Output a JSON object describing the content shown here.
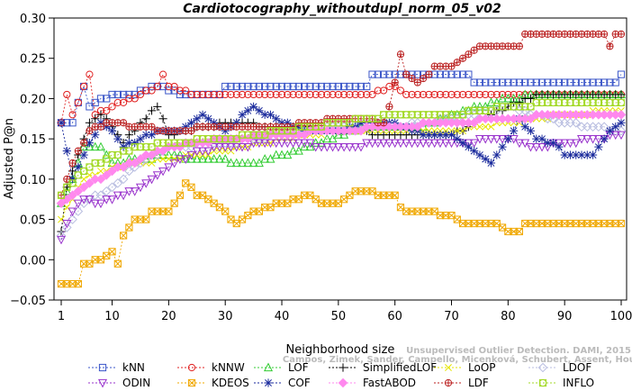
{
  "chart_data": {
    "type": "line",
    "title": "Cardiotocography_withoutdupl_norm_05_v02",
    "xlabel": "Neighborhood size",
    "ylabel": "Adjusted P@n",
    "xlim": [
      1,
      100
    ],
    "ylim": [
      -0.05,
      0.3
    ],
    "xticks": [
      1,
      10,
      20,
      30,
      40,
      50,
      60,
      70,
      80,
      90,
      100
    ],
    "yticks": [
      -0.05,
      0.0,
      0.05,
      0.1,
      0.15,
      0.2,
      0.25,
      0.3
    ],
    "ytick_labels": [
      "−0.05",
      "0.00",
      "0.05",
      "0.10",
      "0.15",
      "0.20",
      "0.25",
      "0.30"
    ],
    "grid": false,
    "legend_position": "bottom",
    "watermark": "Campos, Zimek, Sander, Campello, Micenková, Schubert, Assent, Houle",
    "watermark2": "Unsupervised Outlier Detection. DAMI, 2015.",
    "series": [
      {
        "name": "kNN",
        "color": "#3a55c8",
        "marker": "square",
        "points": [
          [
            1,
            0.17
          ],
          [
            3,
            0.17
          ],
          [
            5,
            0.215
          ],
          [
            6,
            0.19
          ],
          [
            10,
            0.205
          ],
          [
            13,
            0.205
          ],
          [
            18,
            0.215
          ],
          [
            22,
            0.205
          ],
          [
            29,
            0.205
          ],
          [
            30,
            0.215
          ],
          [
            55,
            0.215
          ],
          [
            56,
            0.23
          ],
          [
            73,
            0.23
          ],
          [
            74,
            0.22
          ],
          [
            99,
            0.22
          ],
          [
            100,
            0.23
          ]
        ]
      },
      {
        "name": "kNNW",
        "color": "#e02020",
        "marker": "circle",
        "points": [
          [
            1,
            0.17
          ],
          [
            2,
            0.205
          ],
          [
            3,
            0.18
          ],
          [
            6,
            0.23
          ],
          [
            7,
            0.18
          ],
          [
            10,
            0.19
          ],
          [
            15,
            0.205
          ],
          [
            18,
            0.215
          ],
          [
            19,
            0.23
          ],
          [
            20,
            0.215
          ],
          [
            25,
            0.205
          ],
          [
            55,
            0.205
          ],
          [
            60,
            0.215
          ],
          [
            62,
            0.205
          ],
          [
            75,
            0.205
          ],
          [
            100,
            0.205
          ]
        ]
      },
      {
        "name": "LOF",
        "color": "#33cc33",
        "marker": "triangle-up",
        "points": [
          [
            1,
            0.07
          ],
          [
            3,
            0.1
          ],
          [
            5,
            0.14
          ],
          [
            8,
            0.14
          ],
          [
            10,
            0.12
          ],
          [
            15,
            0.125
          ],
          [
            20,
            0.13
          ],
          [
            25,
            0.125
          ],
          [
            35,
            0.12
          ],
          [
            45,
            0.14
          ],
          [
            55,
            0.165
          ],
          [
            65,
            0.165
          ],
          [
            75,
            0.19
          ],
          [
            80,
            0.2
          ],
          [
            85,
            0.205
          ],
          [
            100,
            0.205
          ]
        ]
      },
      {
        "name": "SimplifiedLOF",
        "color": "#000000",
        "marker": "plus",
        "points": [
          [
            1,
            0.035
          ],
          [
            2,
            0.09
          ],
          [
            4,
            0.13
          ],
          [
            6,
            0.17
          ],
          [
            8,
            0.18
          ],
          [
            10,
            0.165
          ],
          [
            12,
            0.145
          ],
          [
            18,
            0.19
          ],
          [
            20,
            0.155
          ],
          [
            30,
            0.17
          ],
          [
            40,
            0.165
          ],
          [
            50,
            0.16
          ],
          [
            60,
            0.155
          ],
          [
            70,
            0.155
          ],
          [
            80,
            0.19
          ],
          [
            85,
            0.205
          ],
          [
            100,
            0.205
          ]
        ]
      },
      {
        "name": "LoOP",
        "color": "#e6e600",
        "marker": "x",
        "points": [
          [
            1,
            0.05
          ],
          [
            5,
            0.1
          ],
          [
            10,
            0.115
          ],
          [
            15,
            0.12
          ],
          [
            20,
            0.125
          ],
          [
            30,
            0.135
          ],
          [
            40,
            0.15
          ],
          [
            50,
            0.16
          ],
          [
            60,
            0.16
          ],
          [
            70,
            0.16
          ],
          [
            80,
            0.17
          ],
          [
            90,
            0.18
          ],
          [
            100,
            0.185
          ]
        ]
      },
      {
        "name": "LDOF",
        "color": "#b8bde0",
        "marker": "diamond",
        "points": [
          [
            1,
            0.03
          ],
          [
            5,
            0.07
          ],
          [
            10,
            0.09
          ],
          [
            15,
            0.12
          ],
          [
            20,
            0.14
          ],
          [
            30,
            0.145
          ],
          [
            40,
            0.155
          ],
          [
            50,
            0.165
          ],
          [
            60,
            0.165
          ],
          [
            70,
            0.175
          ],
          [
            80,
            0.19
          ],
          [
            90,
            0.17
          ],
          [
            100,
            0.16
          ]
        ]
      },
      {
        "name": "ODIN",
        "color": "#9933cc",
        "marker": "triangle-down",
        "points": [
          [
            1,
            0.025
          ],
          [
            3,
            0.06
          ],
          [
            5,
            0.075
          ],
          [
            8,
            0.07
          ],
          [
            10,
            0.075
          ],
          [
            15,
            0.09
          ],
          [
            20,
            0.115
          ],
          [
            25,
            0.135
          ],
          [
            30,
            0.14
          ],
          [
            40,
            0.145
          ],
          [
            50,
            0.14
          ],
          [
            60,
            0.145
          ],
          [
            70,
            0.145
          ],
          [
            80,
            0.15
          ],
          [
            85,
            0.14
          ],
          [
            90,
            0.145
          ],
          [
            95,
            0.15
          ],
          [
            100,
            0.155
          ]
        ]
      },
      {
        "name": "KDEOS",
        "color": "#f0a800",
        "marker": "square-x",
        "points": [
          [
            1,
            -0.03
          ],
          [
            4,
            -0.03
          ],
          [
            5,
            -0.005
          ],
          [
            8,
            0.0
          ],
          [
            10,
            0.01
          ],
          [
            11,
            -0.005
          ],
          [
            12,
            0.03
          ],
          [
            14,
            0.05
          ],
          [
            16,
            0.05
          ],
          [
            17,
            0.06
          ],
          [
            20,
            0.06
          ],
          [
            22,
            0.08
          ],
          [
            23,
            0.095
          ],
          [
            25,
            0.08
          ],
          [
            27,
            0.075
          ],
          [
            29,
            0.065
          ],
          [
            32,
            0.045
          ],
          [
            35,
            0.06
          ],
          [
            40,
            0.07
          ],
          [
            45,
            0.08
          ],
          [
            47,
            0.07
          ],
          [
            50,
            0.07
          ],
          [
            53,
            0.085
          ],
          [
            60,
            0.08
          ],
          [
            61,
            0.065
          ],
          [
            62,
            0.06
          ],
          [
            65,
            0.06
          ],
          [
            70,
            0.055
          ],
          [
            72,
            0.045
          ],
          [
            78,
            0.045
          ],
          [
            80,
            0.035
          ],
          [
            82,
            0.035
          ],
          [
            83,
            0.045
          ],
          [
            100,
            0.045
          ]
        ]
      },
      {
        "name": "COF",
        "color": "#1a2a9c",
        "marker": "star",
        "points": [
          [
            1,
            0.17
          ],
          [
            3,
            0.1
          ],
          [
            5,
            0.13
          ],
          [
            8,
            0.17
          ],
          [
            10,
            0.16
          ],
          [
            12,
            0.14
          ],
          [
            18,
            0.16
          ],
          [
            22,
            0.16
          ],
          [
            26,
            0.18
          ],
          [
            30,
            0.16
          ],
          [
            35,
            0.19
          ],
          [
            40,
            0.17
          ],
          [
            45,
            0.16
          ],
          [
            50,
            0.16
          ],
          [
            55,
            0.17
          ],
          [
            60,
            0.17
          ],
          [
            65,
            0.155
          ],
          [
            70,
            0.155
          ],
          [
            75,
            0.13
          ],
          [
            77,
            0.12
          ],
          [
            80,
            0.15
          ],
          [
            82,
            0.175
          ],
          [
            85,
            0.15
          ],
          [
            88,
            0.145
          ],
          [
            90,
            0.13
          ],
          [
            95,
            0.13
          ],
          [
            98,
            0.16
          ],
          [
            100,
            0.17
          ]
        ]
      },
      {
        "name": "FastABOD",
        "color": "#ff88ee",
        "marker": "diamond-filled",
        "points": [
          [
            1,
            0.07
          ],
          [
            5,
            0.09
          ],
          [
            10,
            0.11
          ],
          [
            15,
            0.125
          ],
          [
            20,
            0.14
          ],
          [
            30,
            0.15
          ],
          [
            40,
            0.155
          ],
          [
            50,
            0.16
          ],
          [
            60,
            0.165
          ],
          [
            70,
            0.17
          ],
          [
            80,
            0.175
          ],
          [
            90,
            0.18
          ],
          [
            100,
            0.18
          ]
        ]
      },
      {
        "name": "LDF",
        "color": "#bb2222",
        "marker": "circle-plus",
        "points": [
          [
            1,
            0.08
          ],
          [
            3,
            0.12
          ],
          [
            6,
            0.16
          ],
          [
            10,
            0.17
          ],
          [
            20,
            0.16
          ],
          [
            30,
            0.165
          ],
          [
            40,
            0.165
          ],
          [
            50,
            0.175
          ],
          [
            55,
            0.175
          ],
          [
            58,
            0.17
          ],
          [
            59,
            0.19
          ],
          [
            60,
            0.22
          ],
          [
            61,
            0.255
          ],
          [
            62,
            0.23
          ],
          [
            64,
            0.22
          ],
          [
            66,
            0.23
          ],
          [
            67,
            0.24
          ],
          [
            70,
            0.24
          ],
          [
            72,
            0.25
          ],
          [
            74,
            0.26
          ],
          [
            76,
            0.265
          ],
          [
            82,
            0.265
          ],
          [
            83,
            0.28
          ],
          [
            97,
            0.28
          ],
          [
            98,
            0.265
          ],
          [
            99,
            0.28
          ],
          [
            100,
            0.28
          ]
        ]
      },
      {
        "name": "INFLO",
        "color": "#a3d928",
        "marker": "sq-circle",
        "points": [
          [
            1,
            0.08
          ],
          [
            5,
            0.11
          ],
          [
            10,
            0.13
          ],
          [
            15,
            0.14
          ],
          [
            20,
            0.145
          ],
          [
            30,
            0.15
          ],
          [
            40,
            0.16
          ],
          [
            50,
            0.17
          ],
          [
            60,
            0.18
          ],
          [
            70,
            0.18
          ],
          [
            80,
            0.19
          ],
          [
            90,
            0.195
          ],
          [
            100,
            0.195
          ]
        ]
      }
    ]
  }
}
